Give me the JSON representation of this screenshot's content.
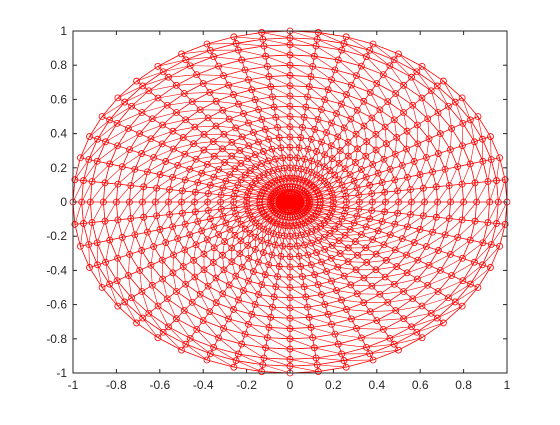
{
  "chart_data": {
    "type": "line",
    "title": "",
    "xlabel": "",
    "ylabel": "",
    "xlim": [
      -1,
      1
    ],
    "ylim": [
      -1,
      1
    ],
    "grid": false,
    "legend": "none",
    "marker": "circle",
    "color": "#ff0000",
    "x_ticks": [
      "-1",
      "-0.8",
      "-0.6",
      "-0.4",
      "-0.2",
      "0",
      "0.2",
      "0.4",
      "0.6",
      "0.8",
      "1"
    ],
    "y_ticks": [
      "1",
      "0.8",
      "0.6",
      "0.4",
      "0.2",
      "0",
      "-0.2",
      "-0.4",
      "-0.6",
      "-0.8",
      "-1"
    ],
    "series": [
      {
        "radii": [
          0.005,
          0.02,
          0.05,
          0.09,
          0.14,
          0.2,
          0.26,
          0.32,
          0.38,
          0.44,
          0.5,
          0.56,
          0.62,
          0.68,
          0.74,
          0.8,
          0.86,
          0.92,
          0.96,
          1.0
        ],
        "angles_deg_step": 7.5
      }
    ]
  }
}
